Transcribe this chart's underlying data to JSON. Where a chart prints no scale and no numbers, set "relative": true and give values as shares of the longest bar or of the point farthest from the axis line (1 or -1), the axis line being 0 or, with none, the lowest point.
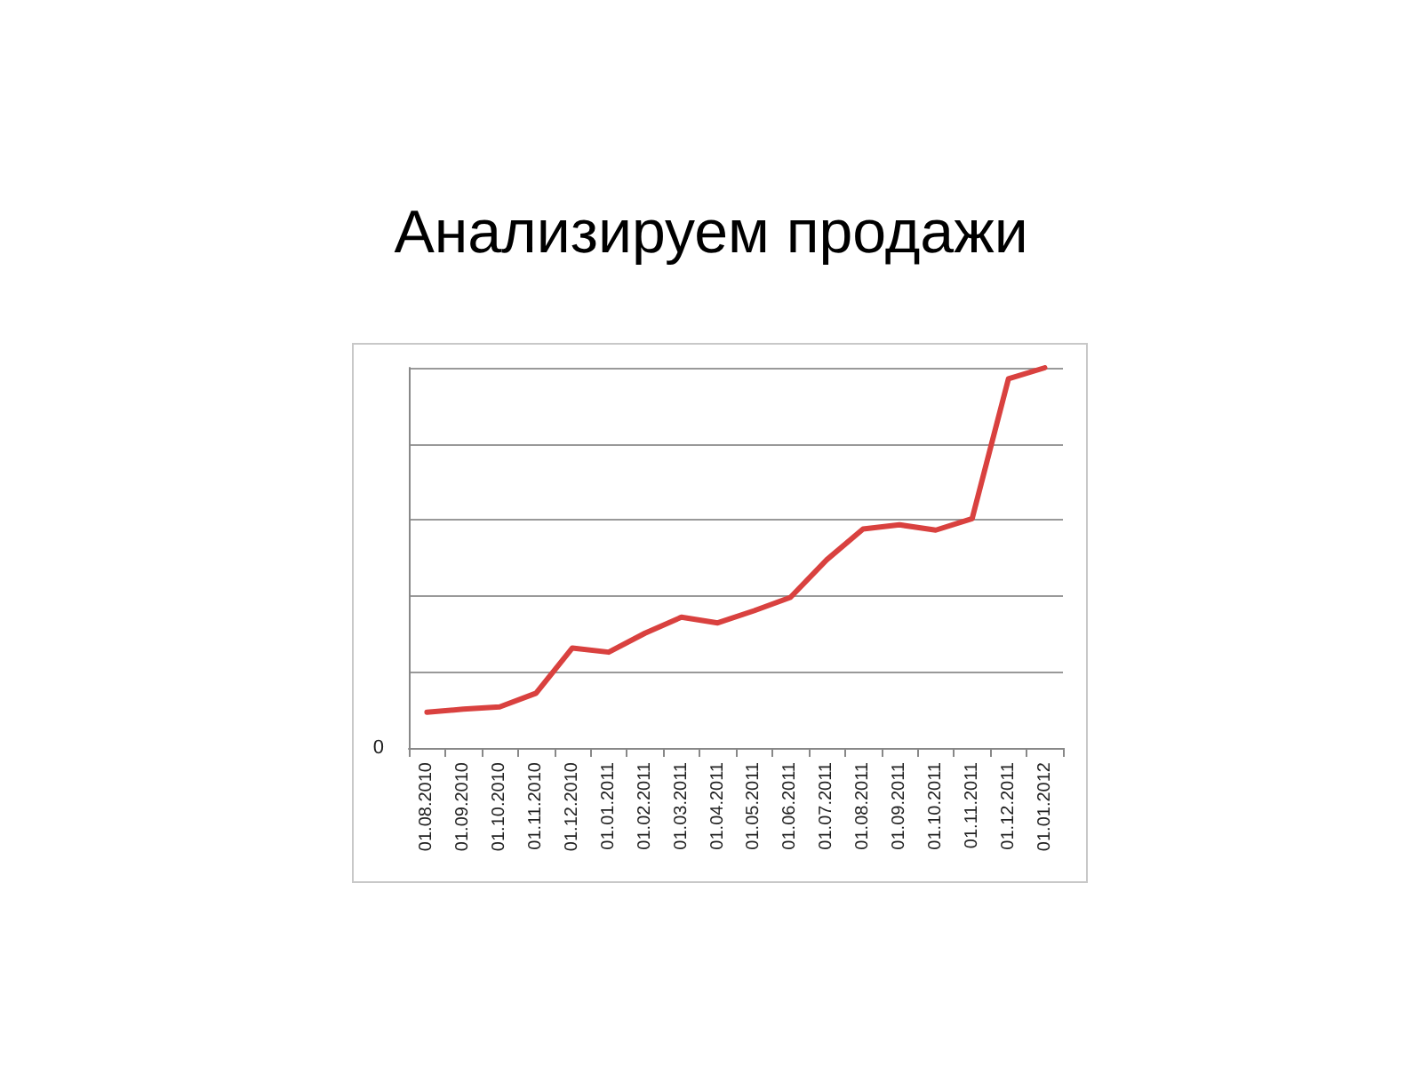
{
  "chart_data": {
    "type": "line",
    "title": "Анализируем продажи",
    "relative": true,
    "categories": [
      "01.08.2010",
      "01.09.2010",
      "01.10.2010",
      "01.11.2010",
      "01.12.2010",
      "01.01.2011",
      "01.02.2011",
      "01.03.2011",
      "01.04.2011",
      "01.05.2011",
      "01.06.2011",
      "01.07.2011",
      "01.08.2011",
      "01.09.2011",
      "01.10.2011",
      "01.11.2011",
      "01.12.2011",
      "01.01.2012"
    ],
    "series": [
      {
        "color": "#d9413f",
        "values": [
          0.094,
          0.102,
          0.108,
          0.144,
          0.263,
          0.252,
          0.302,
          0.344,
          0.329,
          0.361,
          0.396,
          0.495,
          0.576,
          0.587,
          0.573,
          0.603,
          0.971,
          1
        ]
      }
    ],
    "annotations": [
      "0"
    ],
    "grid": "y",
    "marker": "none",
    "line_style": "solid"
  }
}
